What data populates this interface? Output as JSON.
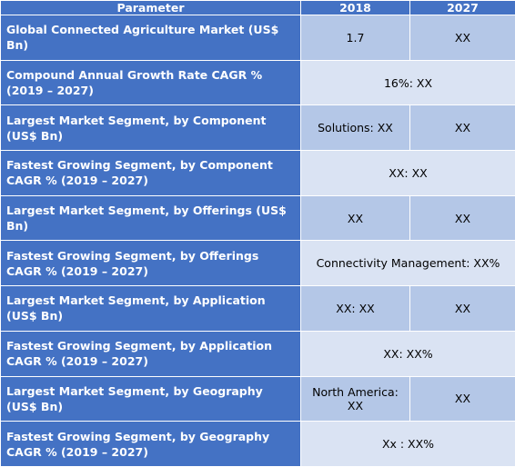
{
  "header": {
    "parameter": "Parameter",
    "year1": "2018",
    "year2": "2027"
  },
  "rows": [
    {
      "parameter": "Global Connected Agriculture Market (US$ Bn)",
      "v2018": "1.7",
      "v2027": "XX"
    },
    {
      "parameter": "Compound Annual Growth Rate CAGR % (2019 – 2027)",
      "merged": "16%: XX"
    },
    {
      "parameter": "Largest Market Segment, by Component (US$ Bn)",
      "v2018": "Solutions: XX",
      "v2027": "XX"
    },
    {
      "parameter": "Fastest Growing Segment, by Component CAGR % (2019 – 2027)",
      "merged": "XX: XX"
    },
    {
      "parameter": "Largest Market Segment, by Offerings (US$ Bn)",
      "v2018": "XX",
      "v2027": "XX"
    },
    {
      "parameter": "Fastest Growing Segment, by Offerings CAGR % (2019 – 2027)",
      "merged": "Connectivity Management: XX%"
    },
    {
      "parameter": "Largest Market Segment, by Application (US$ Bn)",
      "v2018": "XX: XX",
      "v2027": "XX"
    },
    {
      "parameter": "Fastest Growing Segment, by Application CAGR % (2019 – 2027)",
      "merged": "XX: XX%"
    },
    {
      "parameter": "Largest Market Segment, by Geography (US$ Bn)",
      "v2018": "North America: XX",
      "v2027": "XX"
    },
    {
      "parameter": "Fastest Growing Segment, by Geography CAGR % (2019 – 2027)",
      "merged": "Xx : XX%"
    }
  ]
}
